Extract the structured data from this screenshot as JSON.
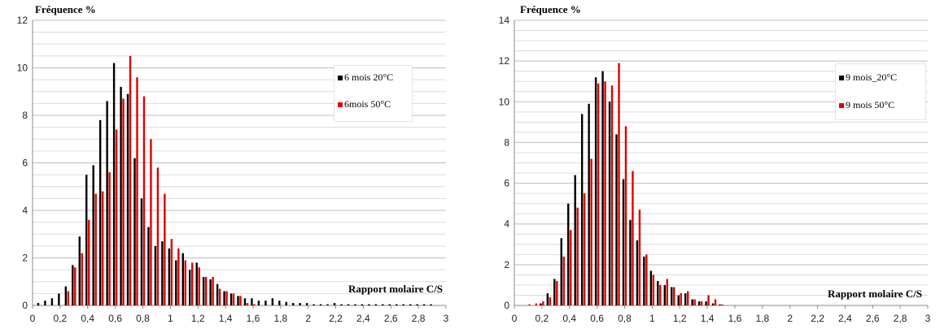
{
  "chart_data": [
    {
      "type": "bar",
      "ylabel": "Fréquence %",
      "xlabel": "Rapport molaire C/S",
      "ylim": [
        0,
        12
      ],
      "yticks": [
        "0",
        "2",
        "4",
        "6",
        "8",
        "10",
        "12"
      ],
      "xticks": [
        "0",
        "0,2",
        "0,4",
        "0,6",
        "0,8",
        "1",
        "1,2",
        "1,4",
        "1,6",
        "1,8",
        "2",
        "2,2",
        "2,4",
        "2,6",
        "2,8",
        "3"
      ],
      "xlim": [
        0,
        3
      ],
      "grid": true,
      "legend_position": "top-right",
      "x": [
        0.05,
        0.1,
        0.15,
        0.2,
        0.25,
        0.3,
        0.35,
        0.4,
        0.45,
        0.5,
        0.55,
        0.6,
        0.65,
        0.7,
        0.75,
        0.8,
        0.85,
        0.9,
        0.95,
        1.0,
        1.05,
        1.1,
        1.15,
        1.2,
        1.25,
        1.3,
        1.35,
        1.4,
        1.45,
        1.5,
        1.55,
        1.6,
        1.65,
        1.7,
        1.75,
        1.8,
        1.85,
        1.9,
        1.95,
        2.0,
        2.05,
        2.1,
        2.15,
        2.2,
        2.25,
        2.3,
        2.35,
        2.4,
        2.45,
        2.5,
        2.55,
        2.6,
        2.65,
        2.7,
        2.75,
        2.8,
        2.85,
        2.9
      ],
      "series": [
        {
          "name": "6 mois 20°C",
          "color": "#000000",
          "values": [
            0.1,
            0.2,
            0.3,
            0.5,
            0.8,
            1.7,
            2.9,
            5.5,
            5.9,
            7.8,
            8.6,
            10.2,
            9.2,
            8.9,
            6.2,
            4.5,
            3.3,
            2.5,
            2.7,
            2.4,
            1.9,
            2.2,
            1.5,
            1.8,
            1.2,
            1.1,
            0.9,
            0.6,
            0.5,
            0.4,
            0.3,
            0.3,
            0.2,
            0.2,
            0.3,
            0.2,
            0.15,
            0.1,
            0.1,
            0.1,
            0.05,
            0.05,
            0.05,
            0.1,
            0.05,
            0.05,
            0.05,
            0.05,
            0.05,
            0.05,
            0.05,
            0.05,
            0.05,
            0.05,
            0.05,
            0.05,
            0.05,
            0.05
          ]
        },
        {
          "name": "6mois 50°C",
          "color": "#e00000",
          "values": [
            0,
            0,
            0,
            0,
            0.6,
            1.6,
            2.2,
            3.6,
            4.7,
            4.8,
            5.6,
            7.4,
            8.7,
            10.5,
            9.6,
            8.8,
            7.0,
            5.8,
            4.7,
            2.8,
            2.4,
            1.9,
            1.8,
            1.6,
            1.2,
            1.2,
            0.7,
            0.6,
            0.5,
            0.4,
            0.1,
            0.05,
            0,
            0,
            0,
            0,
            0,
            0,
            0,
            0,
            0,
            0,
            0,
            0,
            0,
            0,
            0,
            0,
            0,
            0,
            0,
            0,
            0,
            0,
            0,
            0,
            0,
            0
          ]
        }
      ]
    },
    {
      "type": "bar",
      "ylabel": "Fréquence  %",
      "xlabel": "Rapport molaire C/S",
      "ylim": [
        0,
        14
      ],
      "yticks": [
        "0",
        "2",
        "4",
        "6",
        "8",
        "10",
        "12",
        "14"
      ],
      "xticks": [
        "0",
        "0,2",
        "0,4",
        "0,6",
        "0,8",
        "1",
        "1,2",
        "1,4",
        "1,6",
        "1,8",
        "2",
        "2,2",
        "2,4",
        "2,6",
        "2,8",
        "3"
      ],
      "xlim": [
        0,
        3
      ],
      "grid": true,
      "legend_position": "top-right",
      "x": [
        0.05,
        0.1,
        0.15,
        0.2,
        0.25,
        0.3,
        0.35,
        0.4,
        0.45,
        0.5,
        0.55,
        0.6,
        0.65,
        0.7,
        0.75,
        0.8,
        0.85,
        0.9,
        0.95,
        1.0,
        1.05,
        1.1,
        1.15,
        1.2,
        1.25,
        1.3,
        1.35,
        1.4,
        1.45,
        1.5
      ],
      "series": [
        {
          "name": "9 mois_20°C",
          "color": "#000000",
          "values": [
            0,
            0,
            0,
            0.1,
            0.6,
            1.3,
            3.3,
            5.0,
            6.4,
            9.4,
            9.9,
            11.2,
            11.5,
            10.0,
            8.4,
            6.2,
            4.2,
            3.2,
            2.4,
            1.7,
            1.2,
            1.0,
            0.9,
            0.5,
            0.6,
            0.3,
            0.2,
            0.2,
            0.1,
            0.05
          ]
        },
        {
          "name": "9 mois 50°C",
          "color": "#e00000",
          "values": [
            0,
            0.05,
            0.1,
            0.2,
            0.4,
            1.2,
            2.4,
            3.7,
            4.8,
            5.5,
            7.2,
            10.9,
            11.0,
            10.8,
            11.9,
            8.8,
            6.6,
            4.7,
            2.5,
            1.5,
            1.0,
            1.3,
            0.9,
            0.6,
            0.7,
            0.3,
            0.2,
            0.5,
            0.3,
            0.05
          ]
        }
      ]
    }
  ]
}
